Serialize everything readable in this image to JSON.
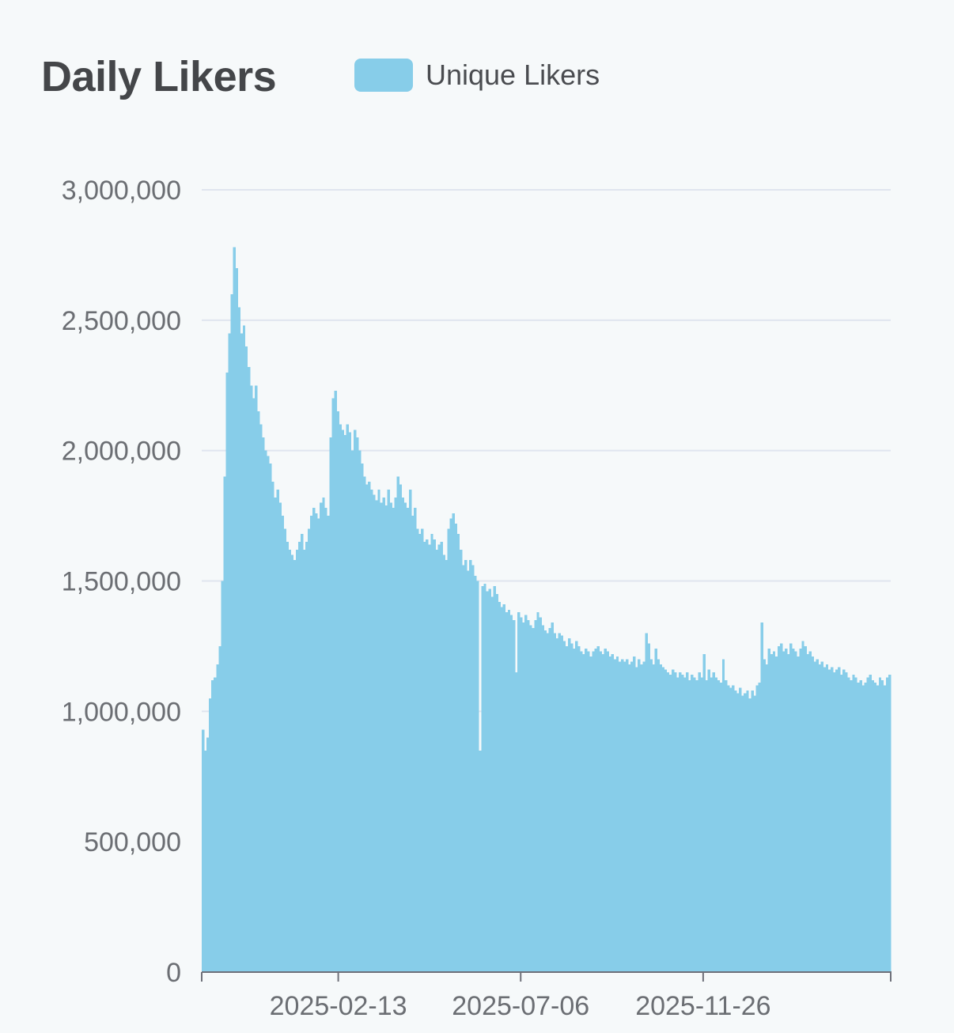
{
  "title": "Daily Likers",
  "legend": {
    "label": "Unique Likers",
    "color": "#87cde9"
  },
  "chart_data": {
    "type": "bar",
    "title": "Daily Likers",
    "xlabel": "",
    "ylabel": "",
    "ylim": [
      0,
      3000000
    ],
    "grid": true,
    "legend_position": "top",
    "x_start": "2024-10-29",
    "x_end": "2026-04-22",
    "x_ticks": [
      "2025-02-13",
      "2025-07-06",
      "2025-11-26"
    ],
    "y_ticks": [
      0,
      500000,
      1000000,
      1500000,
      2000000,
      2500000,
      3000000
    ],
    "y_tick_labels": [
      "0",
      "500,000",
      "1,000,000",
      "1,500,000",
      "2,000,000",
      "2,500,000",
      "3,000,000"
    ],
    "series": [
      {
        "name": "Unique Likers",
        "color": "#87cde9",
        "values": [
          930000,
          850000,
          900000,
          1050000,
          1120000,
          1130000,
          1180000,
          1250000,
          1500000,
          1900000,
          2300000,
          2450000,
          2600000,
          2780000,
          2700000,
          2550000,
          2450000,
          2480000,
          2400000,
          2320000,
          2250000,
          2200000,
          2250000,
          2150000,
          2100000,
          2050000,
          2000000,
          1980000,
          1950000,
          1880000,
          1820000,
          1850000,
          1800000,
          1750000,
          1700000,
          1650000,
          1620000,
          1600000,
          1580000,
          1620000,
          1650000,
          1680000,
          1620000,
          1650000,
          1700000,
          1750000,
          1780000,
          1760000,
          1740000,
          1800000,
          1820000,
          1780000,
          1750000,
          2050000,
          2200000,
          2230000,
          2150000,
          2100000,
          2080000,
          2060000,
          2100000,
          2070000,
          2000000,
          2080000,
          2050000,
          2000000,
          1950000,
          1900000,
          1870000,
          1880000,
          1850000,
          1830000,
          1810000,
          1850000,
          1800000,
          1820000,
          1790000,
          1850000,
          1800000,
          1780000,
          1820000,
          1900000,
          1870000,
          1820000,
          1800000,
          1780000,
          1850000,
          1750000,
          1780000,
          1700000,
          1680000,
          1700000,
          1650000,
          1660000,
          1640000,
          1680000,
          1660000,
          1620000,
          1640000,
          1650000,
          1600000,
          1580000,
          1700000,
          1740000,
          1760000,
          1720000,
          1680000,
          1620000,
          1560000,
          1580000,
          1540000,
          1580000,
          1560000,
          1520000,
          1500000,
          850000,
          1480000,
          1490000,
          1460000,
          1470000,
          1440000,
          1480000,
          1450000,
          1420000,
          1400000,
          1410000,
          1380000,
          1390000,
          1370000,
          1350000,
          1150000,
          1380000,
          1360000,
          1340000,
          1370000,
          1350000,
          1330000,
          1320000,
          1350000,
          1380000,
          1360000,
          1330000,
          1310000,
          1300000,
          1320000,
          1340000,
          1300000,
          1280000,
          1300000,
          1290000,
          1270000,
          1250000,
          1280000,
          1260000,
          1240000,
          1270000,
          1250000,
          1230000,
          1220000,
          1240000,
          1230000,
          1210000,
          1230000,
          1240000,
          1250000,
          1230000,
          1220000,
          1240000,
          1230000,
          1210000,
          1220000,
          1200000,
          1210000,
          1190000,
          1200000,
          1190000,
          1200000,
          1180000,
          1190000,
          1210000,
          1170000,
          1200000,
          1180000,
          1190000,
          1300000,
          1260000,
          1200000,
          1180000,
          1240000,
          1200000,
          1180000,
          1170000,
          1160000,
          1150000,
          1140000,
          1160000,
          1150000,
          1130000,
          1150000,
          1140000,
          1130000,
          1150000,
          1120000,
          1140000,
          1130000,
          1120000,
          1150000,
          1130000,
          1220000,
          1120000,
          1160000,
          1130000,
          1150000,
          1130000,
          1120000,
          1110000,
          1200000,
          1120000,
          1100000,
          1090000,
          1100000,
          1080000,
          1070000,
          1090000,
          1060000,
          1070000,
          1080000,
          1050000,
          1080000,
          1060000,
          1100000,
          1110000,
          1340000,
          1200000,
          1180000,
          1240000,
          1220000,
          1230000,
          1210000,
          1250000,
          1260000,
          1230000,
          1240000,
          1220000,
          1260000,
          1240000,
          1230000,
          1210000,
          1240000,
          1270000,
          1250000,
          1220000,
          1230000,
          1210000,
          1190000,
          1200000,
          1180000,
          1190000,
          1170000,
          1180000,
          1160000,
          1170000,
          1150000,
          1160000,
          1170000,
          1140000,
          1160000,
          1150000,
          1130000,
          1120000,
          1140000,
          1130000,
          1110000,
          1120000,
          1100000,
          1110000,
          1130000,
          1140000,
          1120000,
          1110000,
          1100000,
          1130000,
          1120000,
          1100000,
          1130000,
          1140000
        ]
      }
    ]
  }
}
